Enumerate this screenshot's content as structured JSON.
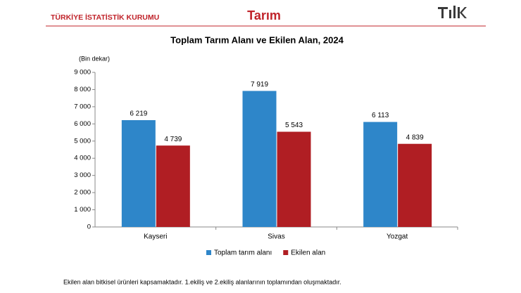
{
  "header": {
    "organization": "TÜRKİYE İSTATİSTİK KURUMU",
    "section": "Tarım"
  },
  "chart_data": {
    "type": "bar",
    "title": "Toplam Tarım Alanı ve Ekilen Alan, 2024",
    "y_unit_label": "(Bin dekar)",
    "categories": [
      "Kayseri",
      "Sivas",
      "Yozgat"
    ],
    "series": [
      {
        "name": "Toplam tarım alanı",
        "color": "#2e86c9",
        "values": [
          6219,
          7919,
          6113
        ],
        "value_labels": [
          "6 219",
          "7 919",
          "6 113"
        ]
      },
      {
        "name": "Ekilen alan",
        "color": "#b01e23",
        "values": [
          4739,
          5543,
          4839
        ],
        "value_labels": [
          "4 739",
          "5 543",
          "4 839"
        ]
      }
    ],
    "ylim": [
      0,
      9000
    ],
    "yticks": [
      0,
      {
        "value": 1000,
        "label": "1 000"
      },
      {
        "value": 2000,
        "label": "2 000"
      },
      {
        "value": 3000,
        "label": "3 000"
      },
      {
        "value": 4000,
        "label": "4 000"
      },
      {
        "value": 5000,
        "label": "5 000"
      },
      {
        "value": 6000,
        "label": "6 000"
      },
      {
        "value": 7000,
        "label": "7 000"
      },
      {
        "value": 8000,
        "label": "8 000"
      },
      {
        "value": 9000,
        "label": "9 000"
      }
    ],
    "grid": false,
    "legend": "bottom"
  },
  "footnote": "Ekilen alan bitkisel ürünleri kapsamaktadır. 1.ekiliş ve 2.ekiliş alanlarının toplamından oluşmaktadır."
}
